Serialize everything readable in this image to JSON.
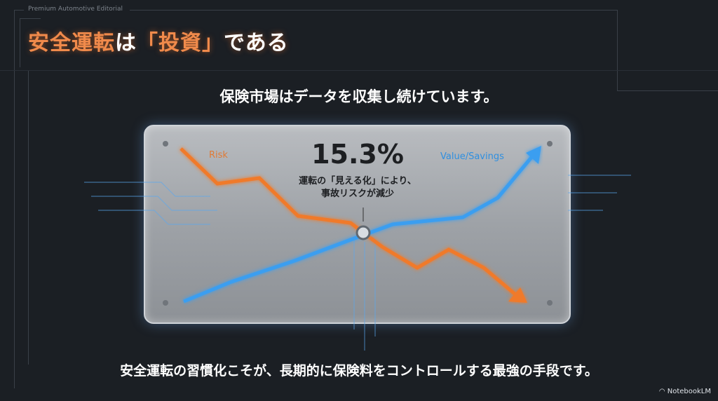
{
  "header": {
    "kicker": "Premium Automotive Editorial",
    "title_part1": "安全運転",
    "title_part2": "は",
    "title_part3": "「投資」",
    "title_part4": "である"
  },
  "subtitle": "保険市場はデータを収集し続けています。",
  "illustration": {
    "risk_label": "Risk",
    "value_label": "Value/Savings",
    "stat_value": "15.3%",
    "stat_note_line1": "運転の「見える化」により、",
    "stat_note_line2": "事故リスクが減少",
    "colors": {
      "risk": "#f07a2a",
      "value": "#3a9ef0"
    }
  },
  "footer": "安全運転の習慣化こそが、長期的に保険料をコントロールする最強の手段です。",
  "logo": "NotebookLM"
}
